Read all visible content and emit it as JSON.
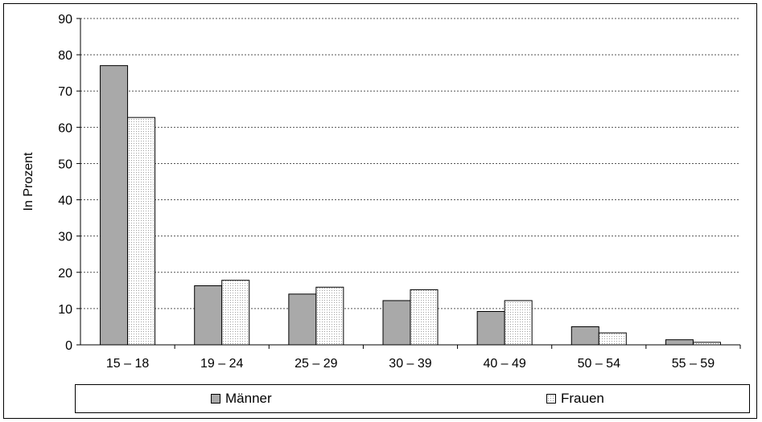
{
  "chart_data": {
    "type": "bar",
    "title": "",
    "xlabel": "",
    "ylabel": "In Prozent",
    "ylim": [
      0,
      90
    ],
    "yticks": [
      "0",
      "10",
      "20",
      "30",
      "40",
      "50",
      "60",
      "70",
      "80",
      "90"
    ],
    "categories": [
      "15 – 18",
      "19 – 24",
      "25 – 29",
      "30 – 39",
      "40 – 49",
      "50 – 54",
      "55 – 59"
    ],
    "series": [
      {
        "name": "Männer",
        "color": "#a9a9a9",
        "values": [
          77,
          16.3,
          14,
          12.2,
          9.2,
          5,
          1.4
        ]
      },
      {
        "name": "Frauen",
        "color": "#f2f2f2",
        "values": [
          62.7,
          17.8,
          15.9,
          15.2,
          12.2,
          3.3,
          0.7
        ]
      }
    ],
    "grid": "horizontal-dashed",
    "legend": "bottom"
  }
}
